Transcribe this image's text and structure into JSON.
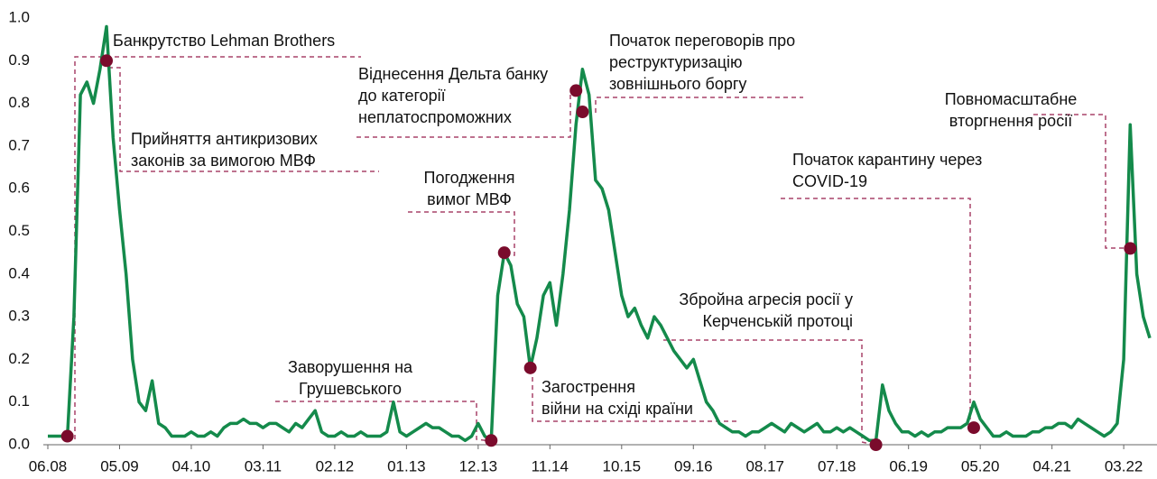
{
  "chart_data": {
    "type": "line",
    "categories": [
      "06.08",
      null,
      null,
      null,
      null,
      null,
      null,
      null,
      null,
      null,
      null,
      "05.09",
      null,
      null,
      null,
      null,
      null,
      null,
      null,
      null,
      null,
      null,
      "04.10",
      null,
      null,
      null,
      null,
      null,
      null,
      null,
      null,
      null,
      null,
      "03.11",
      null,
      null,
      null,
      null,
      null,
      null,
      null,
      null,
      null,
      null,
      "02.12",
      null,
      null,
      null,
      null,
      null,
      null,
      null,
      null,
      null,
      null,
      "01.13",
      null,
      null,
      null,
      null,
      null,
      null,
      null,
      null,
      null,
      null,
      "12.13",
      null,
      null,
      null,
      null,
      null,
      null,
      null,
      null,
      null,
      null,
      "11.14",
      null,
      null,
      null,
      null,
      null,
      null,
      null,
      null,
      null,
      null,
      "10.15",
      null,
      null,
      null,
      null,
      null,
      null,
      null,
      null,
      null,
      null,
      "09.16",
      null,
      null,
      null,
      null,
      null,
      null,
      null,
      null,
      null,
      null,
      "08.17",
      null,
      null,
      null,
      null,
      null,
      null,
      null,
      null,
      null,
      null,
      "07.18",
      null,
      null,
      null,
      null,
      null,
      null,
      null,
      null,
      null,
      null,
      "06.19",
      null,
      null,
      null,
      null,
      null,
      null,
      null,
      null,
      null,
      null,
      "05.20",
      null,
      null,
      null,
      null,
      null,
      null,
      null,
      null,
      null,
      null,
      "04.21",
      null,
      null,
      null,
      null,
      null,
      null,
      null,
      null,
      null,
      null,
      "03.22",
      null,
      null,
      null,
      null
    ],
    "line": {
      "color": "#148a4b",
      "values": [
        0.02,
        0.02,
        0.02,
        0.02,
        0.3,
        0.82,
        0.85,
        0.8,
        0.88,
        0.98,
        0.72,
        0.55,
        0.4,
        0.2,
        0.1,
        0.08,
        0.15,
        0.05,
        0.04,
        0.02,
        0.02,
        0.02,
        0.03,
        0.02,
        0.02,
        0.03,
        0.02,
        0.04,
        0.05,
        0.05,
        0.06,
        0.05,
        0.05,
        0.04,
        0.05,
        0.05,
        0.04,
        0.03,
        0.05,
        0.04,
        0.06,
        0.08,
        0.03,
        0.02,
        0.02,
        0.03,
        0.02,
        0.02,
        0.03,
        0.02,
        0.02,
        0.02,
        0.03,
        0.1,
        0.03,
        0.02,
        0.03,
        0.04,
        0.05,
        0.04,
        0.04,
        0.03,
        0.02,
        0.02,
        0.01,
        0.02,
        0.05,
        0.02,
        0.01,
        0.35,
        0.45,
        0.42,
        0.33,
        0.3,
        0.18,
        0.25,
        0.35,
        0.38,
        0.28,
        0.4,
        0.55,
        0.75,
        0.88,
        0.82,
        0.62,
        0.6,
        0.55,
        0.45,
        0.35,
        0.3,
        0.32,
        0.28,
        0.25,
        0.3,
        0.28,
        0.25,
        0.22,
        0.2,
        0.18,
        0.2,
        0.15,
        0.1,
        0.08,
        0.05,
        0.04,
        0.03,
        0.03,
        0.02,
        0.03,
        0.03,
        0.04,
        0.05,
        0.04,
        0.03,
        0.05,
        0.04,
        0.03,
        0.04,
        0.05,
        0.03,
        0.03,
        0.04,
        0.03,
        0.04,
        0.03,
        0.02,
        0.01,
        0.01,
        0.14,
        0.08,
        0.05,
        0.03,
        0.03,
        0.02,
        0.03,
        0.02,
        0.03,
        0.03,
        0.04,
        0.04,
        0.04,
        0.05,
        0.1,
        0.06,
        0.04,
        0.02,
        0.02,
        0.03,
        0.02,
        0.02,
        0.02,
        0.03,
        0.03,
        0.04,
        0.04,
        0.05,
        0.05,
        0.04,
        0.06,
        0.05,
        0.04,
        0.03,
        0.02,
        0.03,
        0.05,
        0.2,
        0.75,
        0.4,
        0.3,
        0.25
      ]
    },
    "events": {
      "color": "#7a0b2c",
      "values": [
        null,
        null,
        null,
        0.02,
        null,
        null,
        null,
        null,
        null,
        0.9,
        null,
        null,
        null,
        null,
        null,
        null,
        null,
        null,
        null,
        null,
        null,
        null,
        null,
        null,
        null,
        null,
        null,
        null,
        null,
        null,
        null,
        null,
        null,
        null,
        null,
        null,
        null,
        null,
        null,
        null,
        null,
        null,
        null,
        null,
        null,
        null,
        null,
        null,
        null,
        null,
        null,
        null,
        null,
        null,
        null,
        null,
        null,
        null,
        null,
        null,
        null,
        null,
        null,
        null,
        null,
        null,
        null,
        null,
        0.01,
        null,
        0.45,
        null,
        null,
        null,
        0.18,
        null,
        null,
        null,
        null,
        null,
        null,
        0.83,
        0.78,
        null,
        null,
        null,
        null,
        null,
        null,
        null,
        null,
        null,
        null,
        null,
        null,
        null,
        null,
        null,
        null,
        null,
        null,
        null,
        null,
        null,
        null,
        null,
        null,
        null,
        null,
        null,
        null,
        null,
        null,
        null,
        null,
        null,
        null,
        null,
        null,
        null,
        null,
        null,
        null,
        null,
        null,
        null,
        null,
        0.0,
        null,
        null,
        null,
        null,
        null,
        null,
        null,
        null,
        null,
        null,
        null,
        null,
        null,
        null,
        0.04,
        null,
        null,
        null,
        null,
        null,
        null,
        null,
        null,
        null,
        null,
        null,
        null,
        null,
        null,
        null,
        null,
        null,
        null,
        null,
        null,
        null,
        null,
        null,
        0.46,
        null,
        null,
        null
      ]
    },
    "annotations": [
      [
        "Банкрутство Lehman Brothers"
      ],
      [
        "Прийняття антикризових",
        "законів за вимогою МВФ"
      ],
      [
        "Заворушення на",
        "Грушевського"
      ],
      [
        "Погодження",
        "вимог МВФ"
      ],
      [
        "Загострення",
        "війни на східі країни"
      ],
      [
        "Віднесення Дельта банку",
        "до категорії",
        "неплатоспроможних"
      ],
      [
        "Початок переговорів про",
        "реструктуризацію",
        "зовнішнього боргу"
      ],
      [
        "Збройна агресія росії у",
        "Керченській протоці"
      ],
      [
        "Початок карантину через",
        "COVID-19"
      ],
      [
        "Повномасштабне",
        "вторгнення росії"
      ]
    ],
    "ylim": [
      0,
      1
    ],
    "yticks": [
      {
        "value": 0,
        "label": "0.0"
      },
      0.1,
      0.2,
      0.3,
      0.4,
      0.5,
      0.6,
      0.7,
      0.8,
      0.9,
      {
        "value": 1,
        "label": "1.0"
      }
    ]
  }
}
